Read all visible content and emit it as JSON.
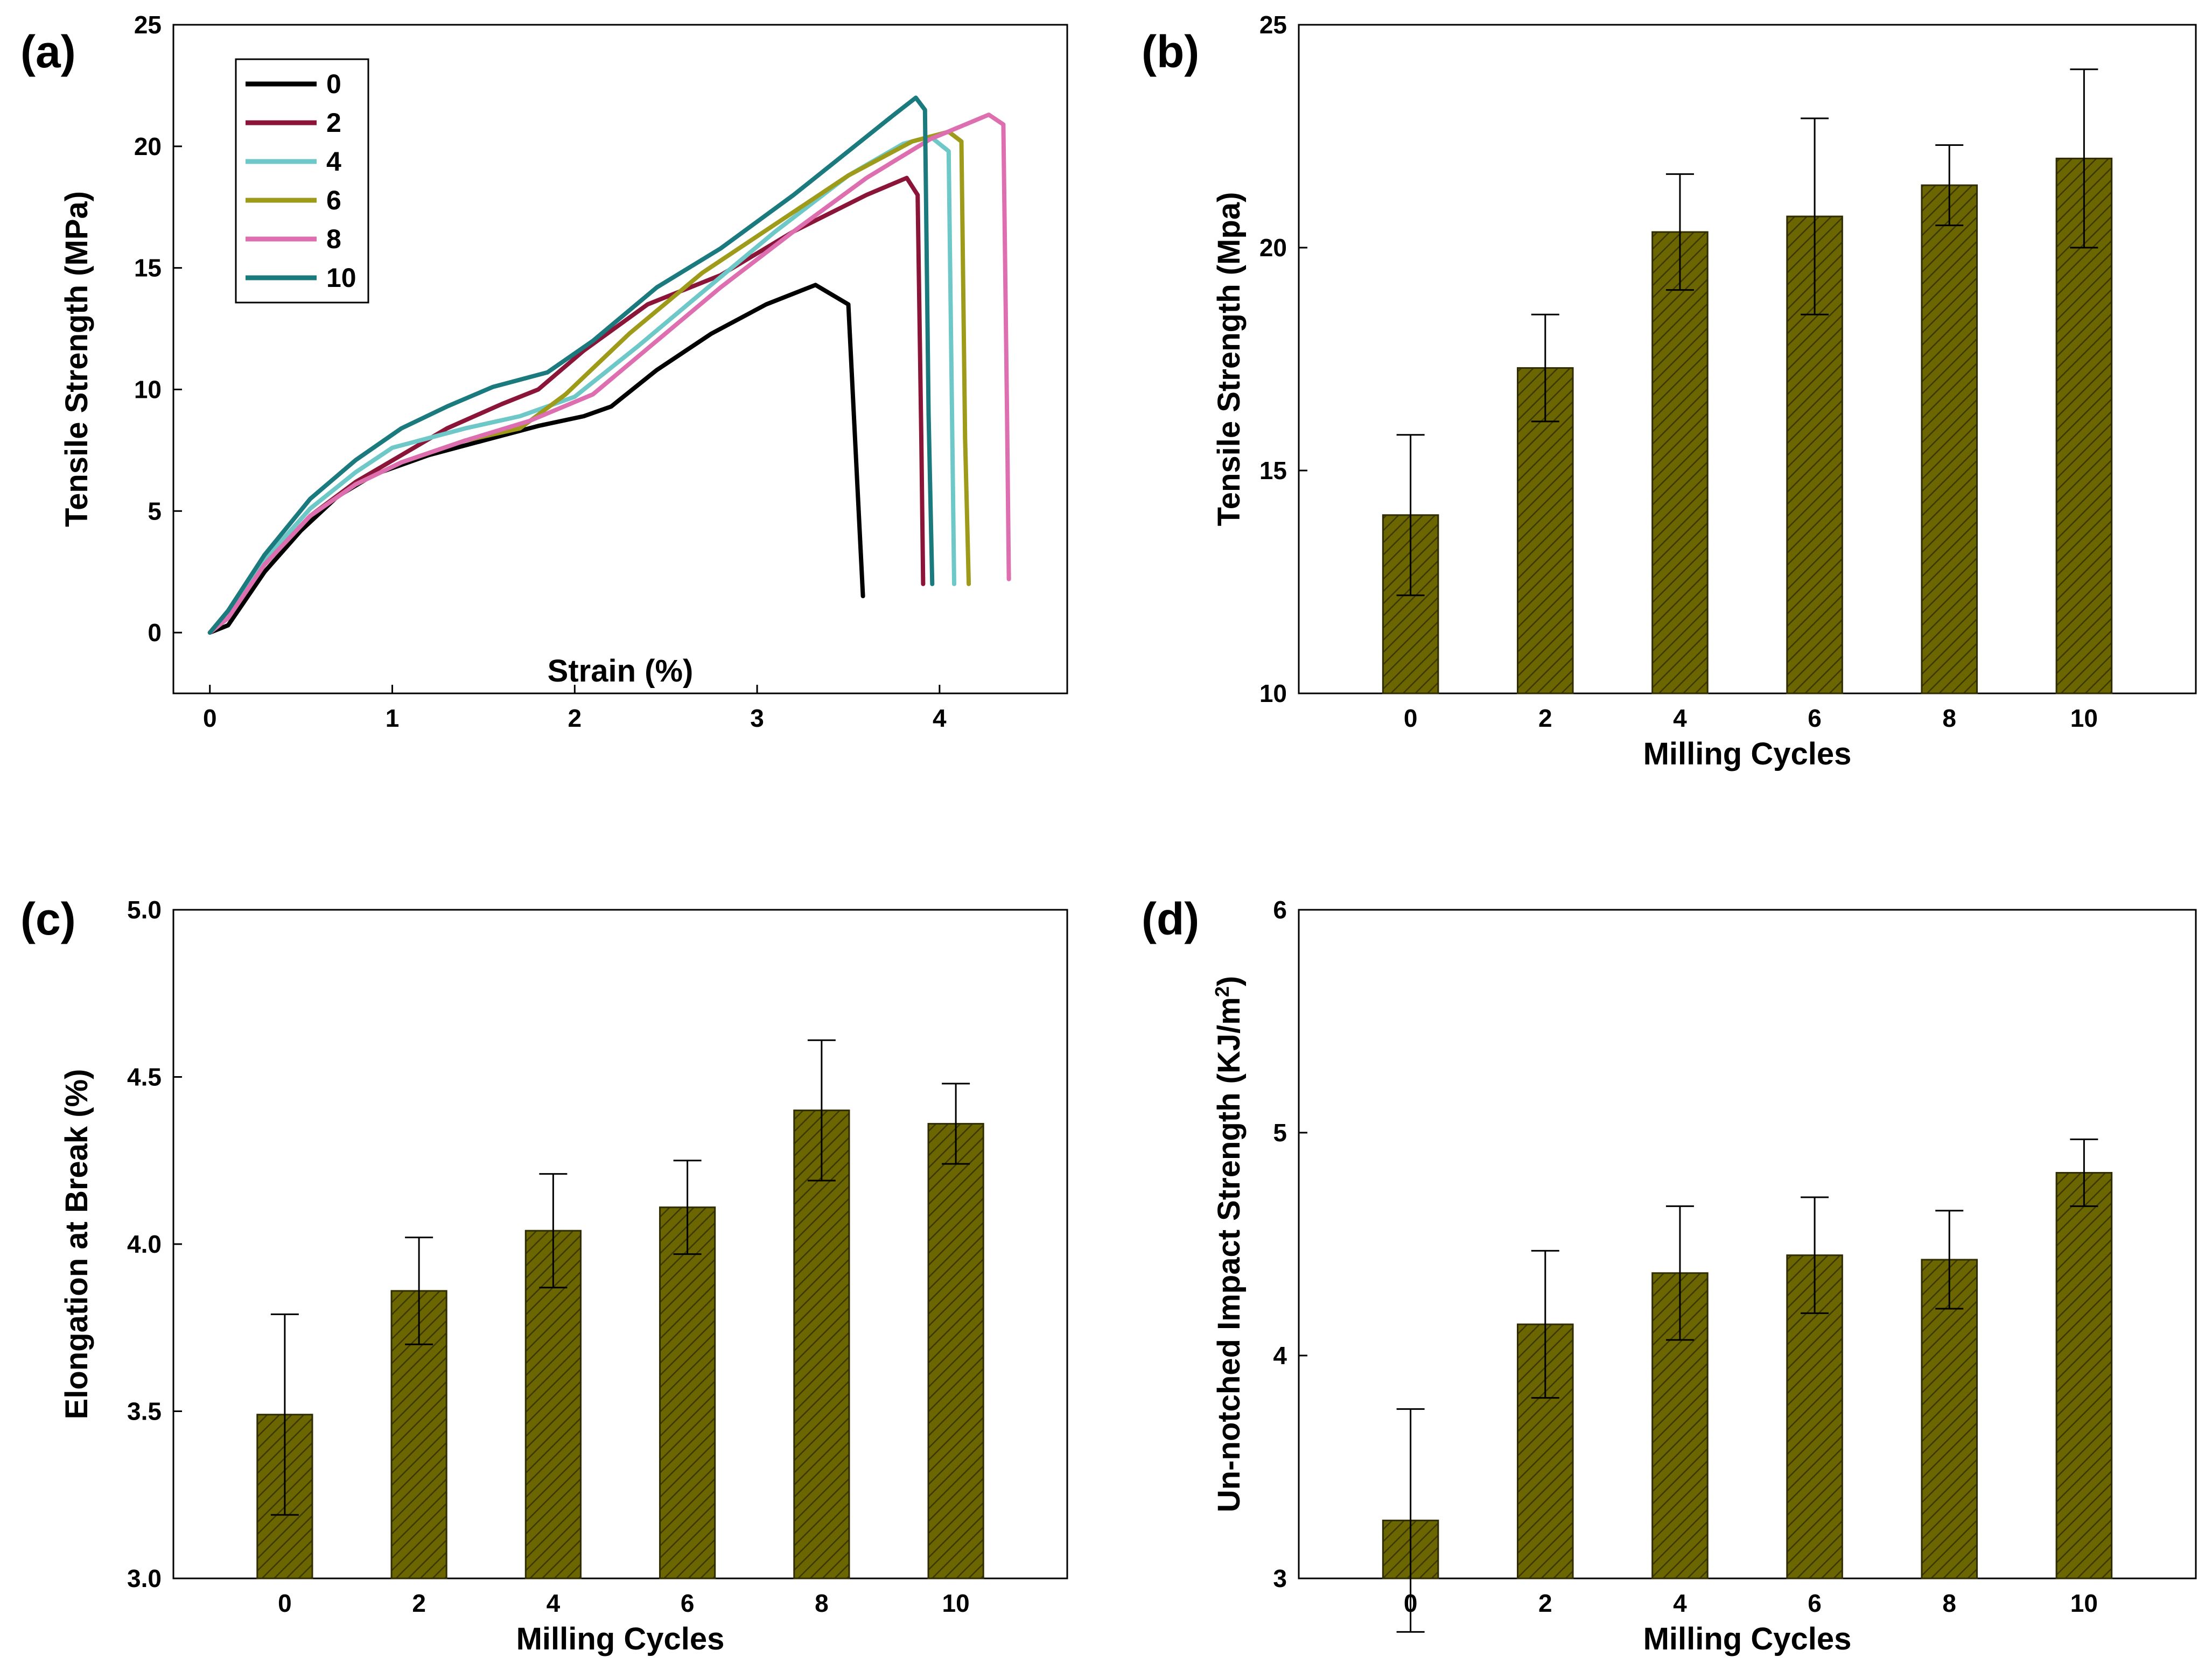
{
  "chart_data": [
    {
      "panel": "(a)",
      "type": "line",
      "xlabel": "Strain (%)",
      "ylabel": "Tensile Strength (MPa)",
      "xlim": [
        -0.2,
        4.7
      ],
      "ylim": [
        -2.5,
        25
      ],
      "xticks": [
        0,
        1,
        2,
        3,
        4
      ],
      "yticks": [
        0,
        5,
        10,
        15,
        20,
        25
      ],
      "legend_position": "top-left",
      "series": [
        {
          "name": "0",
          "color": "#000000",
          "points": [
            [
              0,
              0
            ],
            [
              0.1,
              0.3
            ],
            [
              0.3,
              2.5
            ],
            [
              0.5,
              4.2
            ],
            [
              0.7,
              5.6
            ],
            [
              0.9,
              6.5
            ],
            [
              1.2,
              7.3
            ],
            [
              1.5,
              7.9
            ],
            [
              1.8,
              8.5
            ],
            [
              2.05,
              8.9
            ],
            [
              2.2,
              9.3
            ],
            [
              2.45,
              10.8
            ],
            [
              2.75,
              12.3
            ],
            [
              3.05,
              13.5
            ],
            [
              3.32,
              14.3
            ],
            [
              3.5,
              13.5
            ],
            [
              3.55,
              6
            ],
            [
              3.58,
              1.5
            ]
          ]
        },
        {
          "name": "2",
          "color": "#8B1538",
          "points": [
            [
              0,
              0
            ],
            [
              0.1,
              0.8
            ],
            [
              0.3,
              2.8
            ],
            [
              0.55,
              4.8
            ],
            [
              0.8,
              6.2
            ],
            [
              1.05,
              7.3
            ],
            [
              1.3,
              8.4
            ],
            [
              1.6,
              9.4
            ],
            [
              1.8,
              10
            ],
            [
              2.05,
              11.6
            ],
            [
              2.4,
              13.5
            ],
            [
              2.8,
              14.7
            ],
            [
              3.2,
              16.5
            ],
            [
              3.6,
              18
            ],
            [
              3.82,
              18.7
            ],
            [
              3.88,
              18
            ],
            [
              3.9,
              8
            ],
            [
              3.91,
              2
            ]
          ]
        },
        {
          "name": "4",
          "color": "#6EC8C8",
          "points": [
            [
              0,
              0
            ],
            [
              0.1,
              0.8
            ],
            [
              0.3,
              3
            ],
            [
              0.55,
              5.1
            ],
            [
              0.8,
              6.6
            ],
            [
              1,
              7.6
            ],
            [
              1.15,
              7.9
            ],
            [
              1.4,
              8.4
            ],
            [
              1.7,
              8.9
            ],
            [
              2,
              9.7
            ],
            [
              2.35,
              11.8
            ],
            [
              2.7,
              14
            ],
            [
              3.1,
              16.5
            ],
            [
              3.5,
              18.8
            ],
            [
              3.8,
              20.1
            ],
            [
              3.95,
              20.4
            ],
            [
              4.05,
              19.8
            ],
            [
              4.07,
              8
            ],
            [
              4.08,
              2
            ]
          ]
        },
        {
          "name": "6",
          "color": "#9E9A1A",
          "points": [
            [
              0,
              0
            ],
            [
              0.1,
              0.6
            ],
            [
              0.3,
              2.8
            ],
            [
              0.55,
              4.8
            ],
            [
              0.8,
              6.1
            ],
            [
              1.05,
              7
            ],
            [
              1.4,
              7.9
            ],
            [
              1.7,
              8.4
            ],
            [
              1.95,
              9.8
            ],
            [
              2.3,
              12.3
            ],
            [
              2.7,
              14.8
            ],
            [
              3.1,
              16.8
            ],
            [
              3.5,
              18.8
            ],
            [
              3.85,
              20.2
            ],
            [
              4.05,
              20.6
            ],
            [
              4.12,
              20.2
            ],
            [
              4.14,
              8
            ],
            [
              4.16,
              2
            ]
          ]
        },
        {
          "name": "8",
          "color": "#DD6FB0",
          "points": [
            [
              0,
              0
            ],
            [
              0.1,
              0.6
            ],
            [
              0.3,
              2.8
            ],
            [
              0.55,
              4.8
            ],
            [
              0.8,
              6.1
            ],
            [
              1.05,
              7
            ],
            [
              1.4,
              7.9
            ],
            [
              1.75,
              8.7
            ],
            [
              2.1,
              9.8
            ],
            [
              2.45,
              12
            ],
            [
              2.8,
              14.2
            ],
            [
              3.2,
              16.5
            ],
            [
              3.6,
              18.7
            ],
            [
              3.95,
              20.3
            ],
            [
              4.27,
              21.3
            ],
            [
              4.35,
              20.9
            ],
            [
              4.37,
              9
            ],
            [
              4.38,
              2.2
            ]
          ]
        },
        {
          "name": "10",
          "color": "#1A7A7E",
          "points": [
            [
              0,
              0
            ],
            [
              0.1,
              0.9
            ],
            [
              0.3,
              3.2
            ],
            [
              0.55,
              5.5
            ],
            [
              0.8,
              7.1
            ],
            [
              1.05,
              8.4
            ],
            [
              1.3,
              9.3
            ],
            [
              1.55,
              10.1
            ],
            [
              1.85,
              10.7
            ],
            [
              2.1,
              12
            ],
            [
              2.45,
              14.2
            ],
            [
              2.8,
              15.8
            ],
            [
              3.2,
              18
            ],
            [
              3.5,
              19.8
            ],
            [
              3.75,
              21.3
            ],
            [
              3.87,
              22
            ],
            [
              3.92,
              21.5
            ],
            [
              3.94,
              9
            ],
            [
              3.96,
              2
            ]
          ]
        }
      ]
    },
    {
      "panel": "(b)",
      "type": "bar",
      "xlabel": "Milling Cycles",
      "ylabel": "Tensile Strength (Mpa)",
      "categories": [
        "0",
        "2",
        "4",
        "6",
        "8",
        "10"
      ],
      "values": [
        14.0,
        17.3,
        20.35,
        20.7,
        21.4,
        22.0
      ],
      "errors": [
        1.8,
        1.2,
        1.3,
        2.2,
        0.9,
        2.0
      ],
      "ylim": [
        10,
        25
      ],
      "yticks": [
        10,
        15,
        20,
        25
      ],
      "bar_color": "#6B6600"
    },
    {
      "panel": "(c)",
      "type": "bar",
      "xlabel": "Milling Cycles",
      "ylabel": "Elongation at Break (%)",
      "categories": [
        "0",
        "2",
        "4",
        "6",
        "8",
        "10"
      ],
      "values": [
        3.49,
        3.86,
        4.04,
        4.11,
        4.4,
        4.36
      ],
      "errors": [
        0.3,
        0.16,
        0.17,
        0.14,
        0.21,
        0.12
      ],
      "ylim": [
        3.0,
        5.0
      ],
      "yticks": [
        "3.0",
        "3.5",
        "4.0",
        "4.5",
        "5.0"
      ],
      "bar_color": "#6B6600"
    },
    {
      "panel": "(d)",
      "type": "bar",
      "xlabel": "Milling Cycles",
      "ylabel": "Un-notched Impact Strength (KJ/m",
      "ylabel_superscript": "2",
      "ylabel_suffix": ")",
      "categories": [
        "0",
        "2",
        "4",
        "6",
        "8",
        "10"
      ],
      "values": [
        3.26,
        4.14,
        4.37,
        4.45,
        4.43,
        4.82
      ],
      "errors": [
        0.5,
        0.33,
        0.3,
        0.26,
        0.22,
        0.15
      ],
      "ylim": [
        3,
        6
      ],
      "yticks": [
        3,
        4,
        5,
        6
      ],
      "bar_color": "#6B6600"
    }
  ]
}
